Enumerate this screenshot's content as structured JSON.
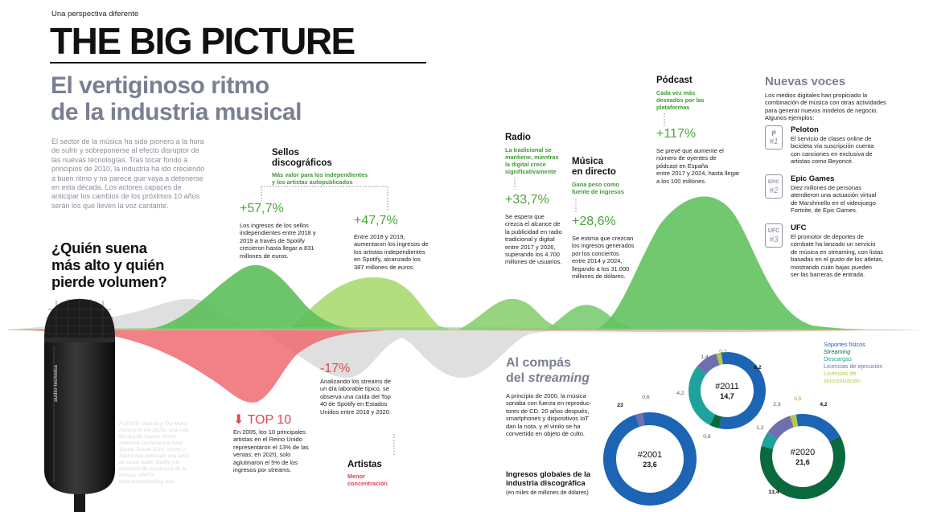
{
  "header": {
    "kicker": "Una perspectiva diferente",
    "title": "THE BIG PICTURE",
    "headline_line1": "El vertiginoso ritmo",
    "headline_line2": "de la industria musical"
  },
  "intro": {
    "lines": [
      "El sector de la música ha sido pionero a la hora",
      "de sufrir y sobreponerse al efecto disruptor de",
      "las nuevas tecnologías. Tras tocar fondo a",
      "principios de 2010, la industria ha ido creciendo",
      "a buen ritmo y no parece que vaya a detenerse",
      "en esta década. Los actores capaces de",
      "anticipar los cambios de los próximos 10 años",
      "serán los que lleven la voz cantante."
    ]
  },
  "question": {
    "lines": [
      "¿Quién suena",
      "más alto y quién",
      "pierde volumen?"
    ]
  },
  "mic": {
    "brand": "audio-technica"
  },
  "source": {
    "lines": [
      "FUENTE: Statista y The Music",
      "Industry in the 2020s, una nota",
      "técnica de Gavant Vrcom,",
      "Abhishek Deshmane e Isaac",
      "Sastre. Desde 2014, Vrcom y",
      "Sastre han publicado una serie",
      "de casos sobre Spotify y la",
      "evolución de la industria de la",
      "música. +INFO:",
      "www.iesepublishing.com."
    ]
  },
  "sellos": {
    "title_line1": "Sellos",
    "title_line2": "discográficos",
    "subtitle_line1": "Más valor para los independientes",
    "subtitle_line2": "y los artistas autopublicados",
    "stat1": {
      "pct": "+57,7%",
      "lines": [
        "Los ingresos de los sellos",
        "independientes entre 2018 y",
        "2019 a través de Spotify",
        "crecieron hasta llegar a 831",
        "millones de euros."
      ]
    },
    "stat2": {
      "pct": "+47,7%",
      "lines": [
        "Entre 2018 y 2019,",
        "aumentaron los ingresos de",
        "los artistas independientes",
        "en Spotify, alcanzado los",
        "387 millones de euros."
      ]
    }
  },
  "radio": {
    "title": "Radio",
    "subtitle_lines": [
      "La tradicional se",
      "mantiene, mientras",
      "la digital crece",
      "significativamente"
    ],
    "pct": "+33,7%",
    "lines": [
      "Se espera que",
      "crezca el alcance de",
      "la publicidad en radio",
      "tradicional y digital",
      "entre 2017 y 2026,",
      "superando los 4.700",
      "millones de usuarios."
    ]
  },
  "directo": {
    "title_line1": "Música",
    "title_line2": "en directo",
    "subtitle_lines": [
      "Gana peso como",
      "fuente de ingresos"
    ],
    "pct": "+28,6%",
    "lines": [
      "Se estima que crezcan",
      "los ingresos generados",
      "por los conciertos",
      "entre 2014 y 2024,",
      "llegando a los 31.000",
      "millones de dólares."
    ]
  },
  "podcast": {
    "title": "Pódcast",
    "subtitle_lines": [
      "Cada vez más",
      "deseados por las",
      "plataformas"
    ],
    "pct": "+117%",
    "lines": [
      "Se prevé que aumente el",
      "número de oyentes de",
      "pódcast en España",
      "entre 2017 y 2024, hasta llegar",
      "a los 100 millones."
    ]
  },
  "artistas": {
    "pct": "-17%",
    "lines": [
      "Analizando los streams de",
      "un día laborable típico, se",
      "observa una caída del Top",
      "40 de Spotify en Estados",
      "Unidos entre 2018 y 2020."
    ],
    "title": "Artistas",
    "subtitle_lines": [
      "Menor",
      "concentración"
    ]
  },
  "top10": {
    "arrow": "⬇",
    "title": "TOP 10",
    "lines": [
      "En 2005, los 10 principales",
      "artistas en el Reino Unido",
      "representaron el 13% de las",
      "ventas; en 2020, solo",
      "aglutinaron el 5% de los",
      "ingresos por streams."
    ]
  },
  "nuevas_voces": {
    "title": "Nuevas voces",
    "intro_lines": [
      "Los medios digitales han propiciado la",
      "combinación de música con otras actividades",
      "para generar nuevos modelos de negocio.",
      "Algunos ejemplos:"
    ],
    "items": [
      {
        "icon": "peloton-icon",
        "symbol": "ᑭ",
        "num": "#1",
        "name": "Peloton",
        "lines": [
          "El servicio de clases online de",
          "bicicleta vía suscripción cuenta",
          "con canciones en exclusiva de",
          "artistas como Beyoncé."
        ]
      },
      {
        "icon": "epic-games-icon",
        "symbol": "EPIC",
        "num": "#2",
        "name": "Epic Games",
        "lines": [
          "Diez millones de personas",
          "atendieron una actuación virtual",
          "de Marshmello en el videojuego",
          "Fortnite, de Epic Games."
        ]
      },
      {
        "icon": "ufc-icon",
        "symbol": "UFC",
        "num": "#3",
        "name": "UFC",
        "lines": [
          "El promotor de deportes de",
          "combate ha lanzado un servicio",
          "de música en streaming, con listas",
          "basadas en el gusto de los atletas,",
          "mostrando cuán bajas pueden",
          "ser las barreras de entrada."
        ]
      }
    ]
  },
  "compas": {
    "title_line1": "Al compás",
    "title_line2_prefix": "del ",
    "title_line2_em": "streaming",
    "lines": [
      "A principio de 2000, la música",
      "sonaba con fuerza en reproduc-",
      "tores de CD. 20 años después,",
      "smartphones y dispositivos IoT",
      "dan la nota, y el vinilo se ha",
      "convertido en objeto de culto."
    ],
    "chart_title_line1": "Ingresos globales de la",
    "chart_title_line2": "industria discográfica",
    "chart_units": "(en miles de millones de dólares)"
  },
  "colors": {
    "physical": "#1d64b5",
    "streaming": "#0b6a3d",
    "downloads": "#1fa29b",
    "performance": "#6f6fb0",
    "sync": "#b2c94c",
    "wave_green": "#6cc55c",
    "wave_red": "#ee7278",
    "wave_grey": "#cfcfcf"
  },
  "chart_data": {
    "type": "pie",
    "title": "Ingresos globales de la industria discográfica",
    "units": "(en miles de millones de dólares)",
    "categories": [
      "Soportes físicos",
      "Streaming",
      "Descargas",
      "Licencias de ejecución",
      "Licencias de sincronización"
    ],
    "legend_position": "top-right",
    "series": [
      {
        "name": "#2001",
        "total": "23,6",
        "values": [
          23,
          0,
          0,
          0.6,
          0
        ],
        "labels": [
          "23",
          "",
          "",
          "0,6",
          ""
        ]
      },
      {
        "name": "#2011",
        "total": "14,7",
        "values": [
          8.2,
          0.6,
          4.2,
          1.4,
          0.3
        ],
        "labels": [
          "8,2",
          "0,6",
          "4,2",
          "1,4",
          "0,3"
        ]
      },
      {
        "name": "#2020",
        "total": "21,6",
        "values": [
          4.2,
          13.4,
          1.2,
          2.3,
          0.5
        ],
        "labels": [
          "4,2",
          "13,4",
          "1,2",
          "2,3",
          "0,5"
        ]
      }
    ]
  }
}
